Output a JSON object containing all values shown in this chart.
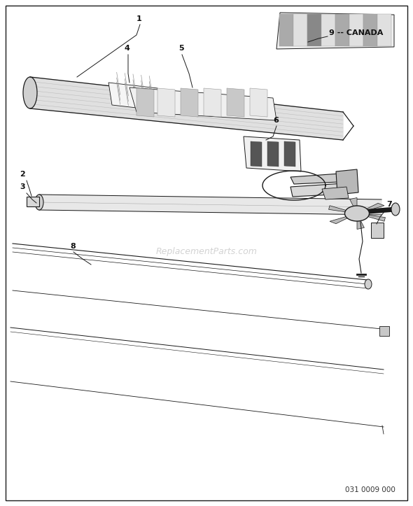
{
  "bg_color": "#ffffff",
  "border_color": "#000000",
  "fig_width": 5.9,
  "fig_height": 7.23,
  "dpi": 100,
  "watermark": "ReplacementParts.com",
  "part_number": "031 0009 000",
  "lc": "#1a1a1a"
}
